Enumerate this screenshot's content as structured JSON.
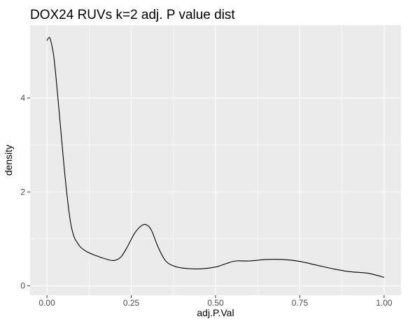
{
  "chart_data": {
    "type": "area",
    "title": "DOX24 RUVs k=2 adj. P value dist",
    "xlabel": "adj.P.Val",
    "ylabel": "density",
    "xlim": [
      -0.05,
      1.05
    ],
    "ylim": [
      -0.2,
      5.55
    ],
    "x_ticks": [
      0.0,
      0.25,
      0.5,
      0.75,
      1.0
    ],
    "x_tick_labels": [
      "0.00",
      "0.25",
      "0.50",
      "0.75",
      "1.00"
    ],
    "y_ticks": [
      0,
      2,
      4
    ],
    "y_tick_labels": [
      "0",
      "2",
      "4"
    ],
    "grid": true,
    "legend": "none",
    "colors": {
      "panel_background": "#ebebeb",
      "gridline": "#ffffff",
      "line": "#000000",
      "tick_text": "#4d4d4d"
    },
    "series": [
      {
        "x": [
          0.0,
          0.005,
          0.01,
          0.02,
          0.03,
          0.04,
          0.05,
          0.06,
          0.07,
          0.08,
          0.09,
          0.1,
          0.12,
          0.15,
          0.18,
          0.2,
          0.22,
          0.24,
          0.26,
          0.28,
          0.295,
          0.31,
          0.33,
          0.35,
          0.37,
          0.4,
          0.45,
          0.5,
          0.53,
          0.56,
          0.6,
          0.65,
          0.7,
          0.75,
          0.8,
          0.85,
          0.9,
          0.95,
          0.98,
          1.0
        ],
        "y": [
          5.22,
          5.28,
          5.25,
          4.9,
          4.2,
          3.4,
          2.6,
          1.9,
          1.35,
          1.05,
          0.92,
          0.82,
          0.72,
          0.63,
          0.56,
          0.54,
          0.62,
          0.85,
          1.12,
          1.28,
          1.3,
          1.18,
          0.82,
          0.55,
          0.44,
          0.38,
          0.36,
          0.4,
          0.47,
          0.53,
          0.53,
          0.56,
          0.56,
          0.52,
          0.44,
          0.36,
          0.3,
          0.27,
          0.22,
          0.18
        ]
      }
    ]
  }
}
